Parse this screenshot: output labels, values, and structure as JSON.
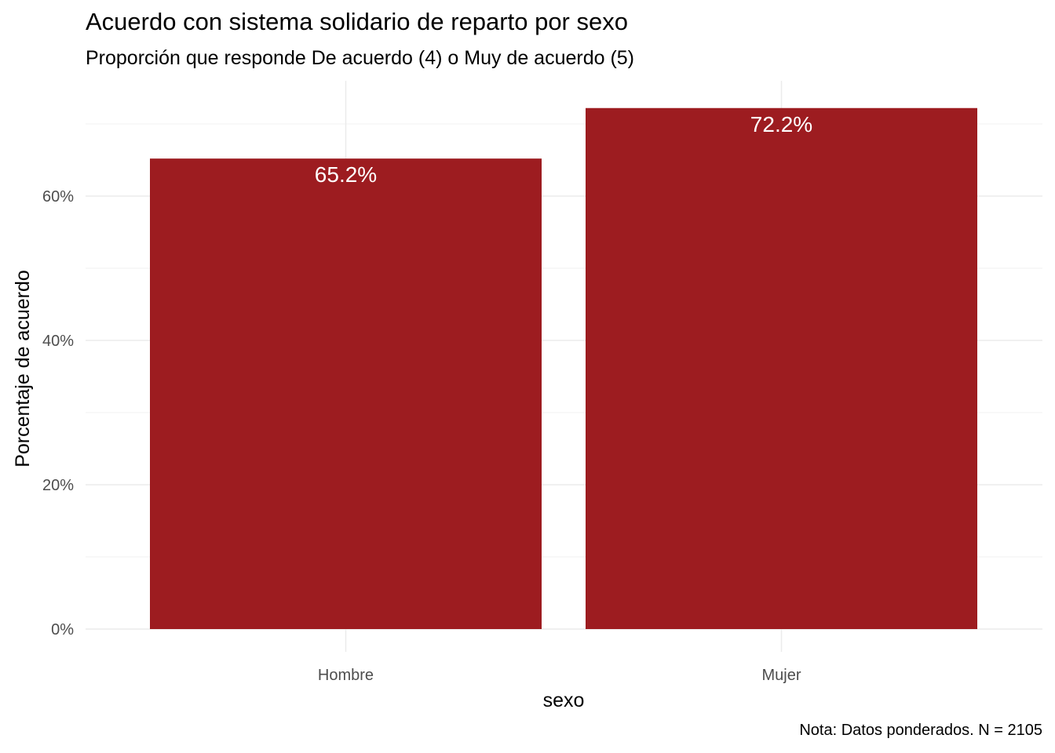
{
  "chart_data": {
    "type": "bar",
    "title": "Acuerdo con sistema solidario de reparto por sexo",
    "subtitle": "Proporción que responde De acuerdo (4) o Muy de acuerdo (5)",
    "caption": "Nota: Datos ponderados. N = 2105",
    "xlabel": "sexo",
    "ylabel": "Porcentaje de acuerdo",
    "categories": [
      "Hombre",
      "Mujer"
    ],
    "values": [
      65.2,
      72.2
    ],
    "data_labels": [
      "65.2%",
      "72.2%"
    ],
    "yticks": [
      0,
      20,
      40,
      60
    ],
    "ytick_labels": [
      "0%",
      "20%",
      "40%",
      "60%"
    ],
    "ylim": [
      0,
      72.2
    ],
    "grid": true,
    "legend": "none",
    "bar_color": "#9d1c20",
    "label_color": "#ffffff"
  }
}
